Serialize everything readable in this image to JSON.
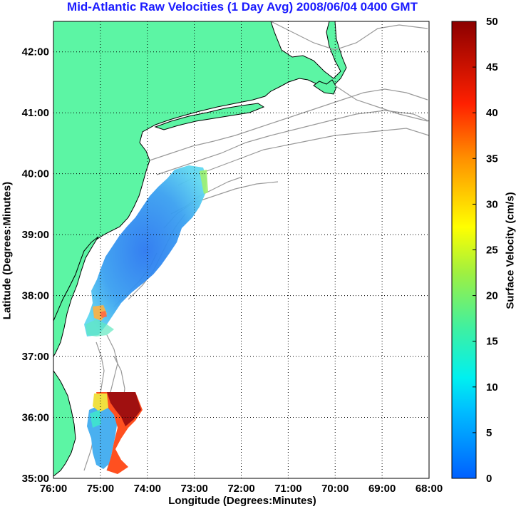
{
  "title": "Mid-Atlantic Raw Velocities (1 Day Avg) 2008/06/04 0400 GMT",
  "xlabel": "Longitude (Degrees:Minutes)",
  "ylabel": "Latitude (Degrees:Minutes)",
  "colorbar_label": "Surface Velocity (cm/s)",
  "colors": {
    "land": "#5cf5a4",
    "coast": "#000000",
    "bathymetry": "#999999",
    "grid": "#000000"
  },
  "chart_data": {
    "type": "heatmap",
    "x_ticks": [
      "76:00",
      "75:00",
      "74:00",
      "73:00",
      "72:00",
      "71:00",
      "70:00",
      "69:00",
      "68:00"
    ],
    "y_ticks": [
      "42:00",
      "41:00",
      "40:00",
      "39:00",
      "38:00",
      "37:00",
      "36:00",
      "35:00"
    ],
    "xlim": [
      -76,
      -68
    ],
    "ylim": [
      35,
      42.5
    ],
    "grid": true,
    "colorbar": {
      "min": 0,
      "max": 50,
      "ticks": [
        "50",
        "45",
        "40",
        "35",
        "30",
        "25",
        "20",
        "15",
        "10",
        "5",
        "0"
      ]
    }
  }
}
